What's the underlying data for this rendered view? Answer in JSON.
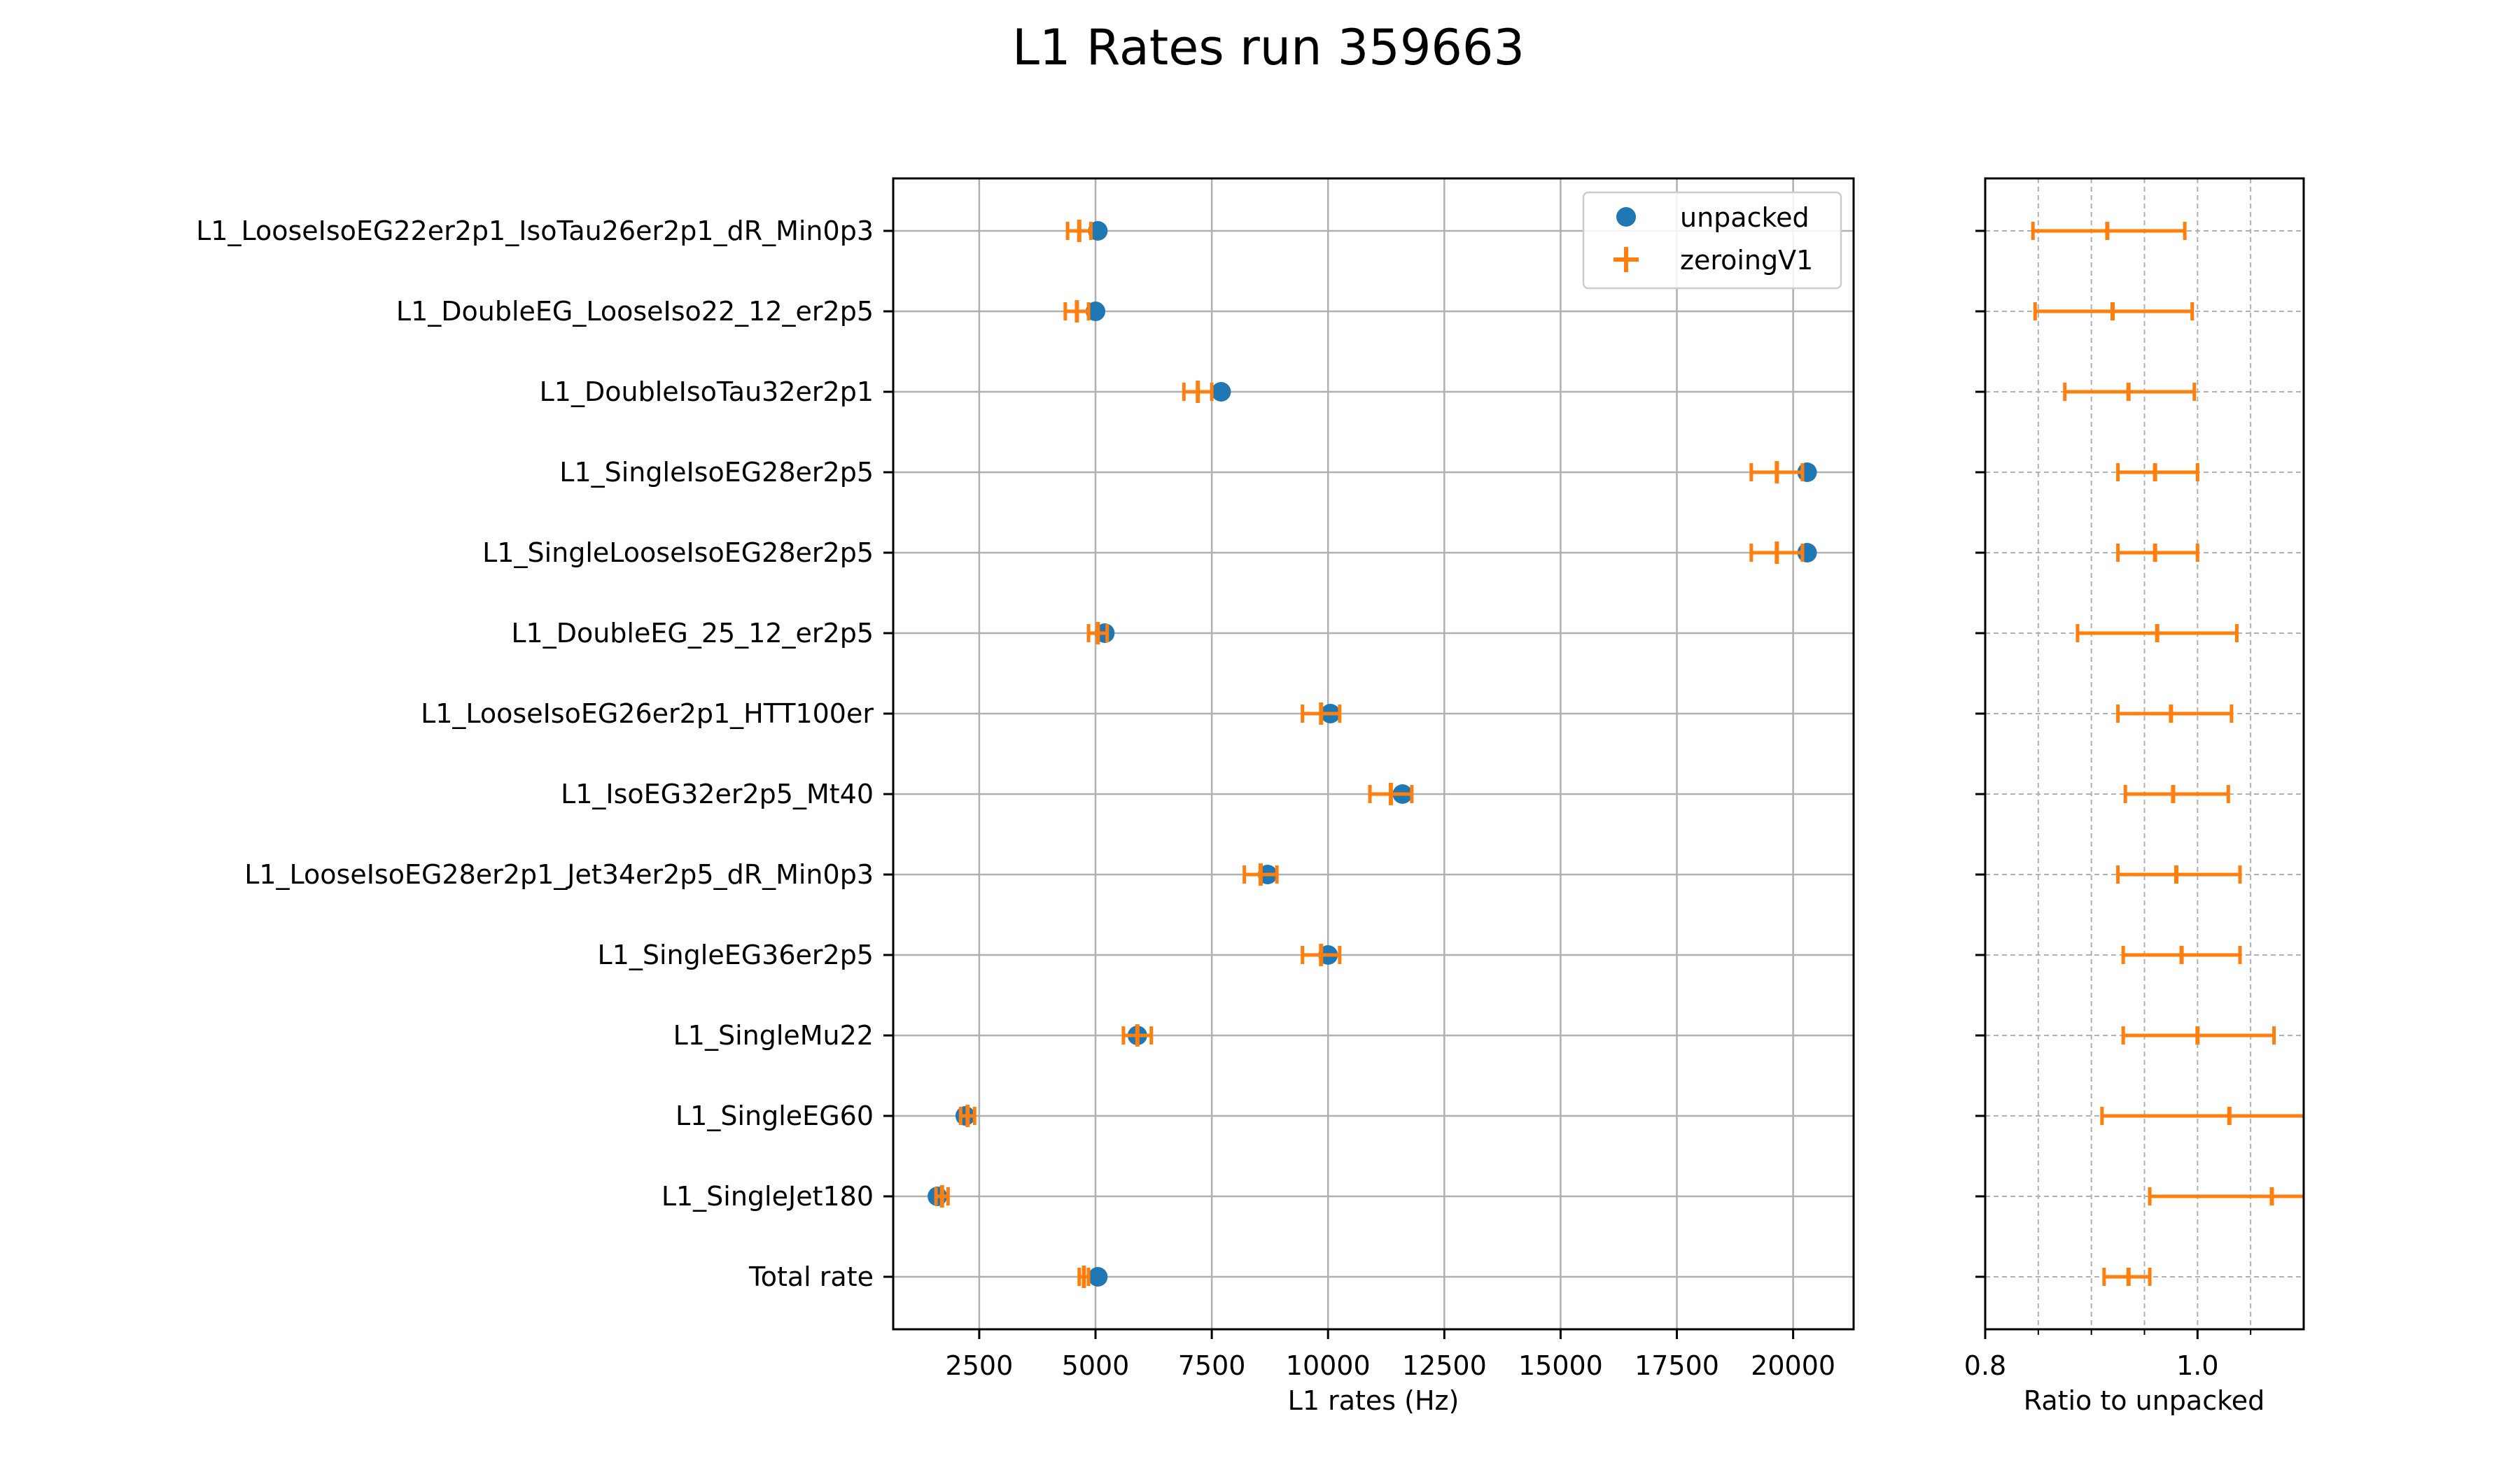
{
  "title": "L1 Rates run 359663",
  "colors": {
    "unpacked": "#1f77b4",
    "zeroing": "#ff7f0e",
    "grid": "#b0b0b0",
    "axis": "#000000"
  },
  "chart_data": [
    {
      "type": "scatter",
      "orientation": "horizontal",
      "xlabel": "L1 rates (Hz)",
      "xlim": [
        650,
        21300
      ],
      "xticks": [
        2500,
        5000,
        7500,
        10000,
        12500,
        15000,
        17500,
        20000
      ],
      "grid": true,
      "legend_position": "upper right",
      "categories": [
        "L1_LooseIsoEG22er2p1_IsoTau26er2p1_dR_Min0p3",
        "L1_DoubleEG_LooseIso22_12_er2p5",
        "L1_DoubleIsoTau32er2p1",
        "L1_SingleIsoEG28er2p5",
        "L1_SingleLooseIsoEG28er2p5",
        "L1_DoubleEG_25_12_er2p5",
        "L1_LooseIsoEG26er2p1_HTT100er",
        "L1_IsoEG32er2p5_Mt40",
        "L1_LooseIsoEG28er2p1_Jet34er2p5_dR_Min0p3",
        "L1_SingleEG36er2p5",
        "L1_SingleMu22",
        "L1_SingleEG60",
        "L1_SingleJet180",
        "Total rate"
      ],
      "series": [
        {
          "name": "unpacked",
          "marker": "circle",
          "values": [
            5050,
            5000,
            7700,
            20300,
            20300,
            5200,
            10050,
            11600,
            8700,
            10000,
            5900,
            2200,
            1600,
            5050
          ]
        },
        {
          "name": "zeroingV1",
          "marker": "plus-errorbar",
          "values": [
            4650,
            4600,
            7200,
            19650,
            19650,
            5050,
            9850,
            11350,
            8550,
            9850,
            5900,
            2250,
            1700,
            4750
          ],
          "xerr": [
            250,
            250,
            300,
            550,
            550,
            200,
            400,
            450,
            350,
            400,
            300,
            150,
            130,
            100
          ]
        }
      ]
    },
    {
      "type": "scatter",
      "orientation": "horizontal",
      "xlabel": "Ratio to unpacked",
      "xlim": [
        0.8,
        1.1
      ],
      "xticks": [
        0.8,
        1.0
      ],
      "xticklabels": [
        "0.8",
        "1.0"
      ],
      "minor_xticks": [
        0.85,
        0.9,
        0.95,
        1.05
      ],
      "grid": true,
      "series": [
        {
          "name": "zeroingV1",
          "values": [
            0.915,
            0.92,
            0.935,
            0.96,
            0.96,
            0.962,
            0.975,
            0.977,
            0.98,
            0.985,
            1.0,
            1.03,
            1.07,
            0.935
          ],
          "xerr_low": [
            0.07,
            0.073,
            0.06,
            0.035,
            0.035,
            0.075,
            0.05,
            0.045,
            0.055,
            0.055,
            0.07,
            0.12,
            0.115,
            0.023
          ],
          "xerr_high": [
            0.073,
            0.075,
            0.062,
            0.04,
            0.04,
            0.075,
            0.057,
            0.052,
            0.06,
            0.055,
            0.072,
            0.1,
            0.1,
            0.02
          ]
        }
      ]
    }
  ]
}
